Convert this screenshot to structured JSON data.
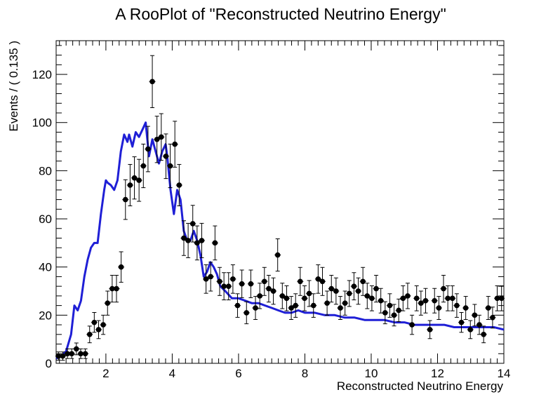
{
  "chart_data": {
    "type": "scatter",
    "title": "A RooPlot of \"Reconstructed Neutrino Energy\"",
    "xlabel": "Reconstructed Neutrino Energy",
    "ylabel": "Events / ( 0.135 )",
    "xlim": [
      0.5,
      14
    ],
    "ylim": [
      0,
      134
    ],
    "x_ticks": [
      "2",
      "4",
      "6",
      "8",
      "10",
      "12",
      "14"
    ],
    "y_ticks": [
      "0",
      "20",
      "40",
      "60",
      "80",
      "100",
      "120"
    ],
    "grid": false,
    "legend": "none",
    "colors": {
      "data": "#000000",
      "model": "#1f1fd6"
    },
    "series": [
      {
        "kind": "data-points-with-errors",
        "x": [
          0.57,
          0.7,
          0.84,
          0.97,
          1.11,
          1.24,
          1.38,
          1.51,
          1.65,
          1.78,
          1.92,
          2.05,
          2.19,
          2.32,
          2.46,
          2.59,
          2.73,
          2.86,
          3.0,
          3.13,
          3.27,
          3.4,
          3.54,
          3.67,
          3.81,
          3.94,
          4.08,
          4.21,
          4.35,
          4.48,
          4.62,
          4.75,
          4.89,
          5.02,
          5.16,
          5.29,
          5.43,
          5.56,
          5.7,
          5.83,
          5.97,
          6.1,
          6.24,
          6.37,
          6.51,
          6.64,
          6.78,
          6.91,
          7.05,
          7.18,
          7.32,
          7.45,
          7.59,
          7.72,
          7.86,
          7.99,
          8.13,
          8.26,
          8.4,
          8.53,
          8.67,
          8.8,
          8.94,
          9.07,
          9.21,
          9.34,
          9.48,
          9.61,
          9.75,
          9.88,
          10.02,
          10.15,
          10.29,
          10.42,
          10.56,
          10.69,
          10.83,
          10.96,
          11.1,
          11.23,
          11.37,
          11.5,
          11.64,
          11.77,
          11.91,
          12.04,
          12.18,
          12.31,
          12.45,
          12.58,
          12.72,
          12.85,
          12.99,
          13.12,
          13.26,
          13.39,
          13.53,
          13.66,
          13.8,
          13.93
        ],
        "y": [
          3,
          3,
          4,
          4,
          6,
          4,
          4,
          12,
          17,
          14,
          16,
          25,
          31,
          31,
          40,
          68,
          74,
          77,
          76,
          82,
          89,
          117,
          93,
          94,
          86,
          82,
          91,
          74,
          52,
          51,
          58,
          50,
          51,
          35,
          36,
          50,
          34,
          32,
          32,
          35,
          24,
          33,
          21,
          33,
          23,
          28,
          34,
          31,
          30,
          45,
          28,
          27,
          23,
          24,
          34,
          27,
          29,
          24,
          35,
          34,
          25,
          31,
          30,
          23,
          25,
          29,
          32,
          30,
          34,
          28,
          27,
          31,
          26,
          21,
          24,
          20,
          22,
          27,
          28,
          16,
          27,
          25,
          26,
          14,
          26,
          23,
          31,
          27,
          27,
          24,
          17,
          23,
          14,
          20,
          16,
          12,
          23,
          19,
          27,
          27
        ]
      },
      {
        "kind": "model-curve",
        "x": [
          0.5,
          0.65,
          0.8,
          0.95,
          1.05,
          1.15,
          1.25,
          1.35,
          1.45,
          1.55,
          1.65,
          1.75,
          1.85,
          1.95,
          2.0,
          2.05,
          2.15,
          2.25,
          2.35,
          2.45,
          2.55,
          2.65,
          2.7,
          2.8,
          2.9,
          3.0,
          3.1,
          3.2,
          3.3,
          3.4,
          3.5,
          3.6,
          3.7,
          3.8,
          3.85,
          3.95,
          4.05,
          4.15,
          4.25,
          4.35,
          4.45,
          4.55,
          4.65,
          4.75,
          4.85,
          4.95,
          5.05,
          5.15,
          5.25,
          5.35,
          5.45,
          5.6,
          5.8,
          6.0,
          6.2,
          6.4,
          6.6,
          6.8,
          7.0,
          7.2,
          7.4,
          7.6,
          7.8,
          8.0,
          8.3,
          8.6,
          8.9,
          9.2,
          9.5,
          9.8,
          10.1,
          10.4,
          10.7,
          11.0,
          11.3,
          11.6,
          11.9,
          12.2,
          12.5,
          12.8,
          13.1,
          13.4,
          13.7,
          14.0
        ],
        "y": [
          2,
          3,
          5,
          12,
          24,
          22,
          26,
          36,
          43,
          48,
          50,
          50,
          62,
          72,
          76,
          75,
          74,
          72,
          76,
          88,
          95,
          92,
          95,
          90,
          96,
          94,
          97,
          100,
          86,
          93,
          88,
          83,
          88,
          91,
          86,
          72,
          62,
          72,
          68,
          55,
          51,
          51,
          55,
          51,
          45,
          36,
          38,
          42,
          40,
          37,
          32,
          30,
          27,
          27,
          26,
          25,
          25,
          24,
          23,
          22,
          21,
          21,
          22,
          21,
          21,
          20,
          20,
          19,
          19,
          18,
          18,
          18,
          17,
          17,
          16,
          16,
          16,
          16,
          15,
          15,
          15,
          15,
          15,
          14
        ]
      }
    ]
  }
}
